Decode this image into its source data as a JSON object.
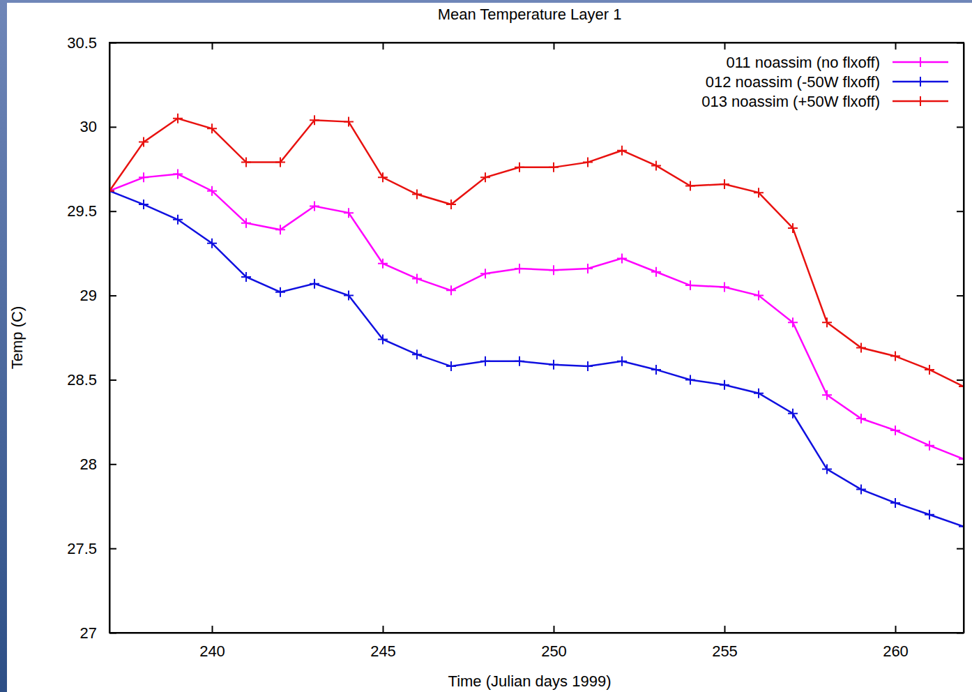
{
  "chart_data": {
    "type": "line",
    "title": "Mean Temperature Layer 1",
    "x_label": "Time (Julian days 1999)",
    "y_label": "Temp (C)",
    "x": [
      237,
      238,
      239,
      240,
      241,
      242,
      243,
      244,
      245,
      246,
      247,
      248,
      249,
      250,
      251,
      252,
      253,
      254,
      255,
      256,
      257,
      258,
      259,
      260,
      261,
      262
    ],
    "series": [
      {
        "name": "011 noassim (no flxoff)",
        "color": "#ff00ff",
        "marker": "plus",
        "line_style": "solid",
        "values": [
          29.62,
          29.7,
          29.72,
          29.62,
          29.43,
          29.39,
          29.53,
          29.49,
          29.19,
          29.1,
          29.03,
          29.13,
          29.16,
          29.15,
          29.16,
          29.22,
          29.14,
          29.06,
          29.05,
          29.0,
          28.84,
          28.41,
          28.27,
          28.2,
          28.11,
          28.03
        ]
      },
      {
        "name": "012 noassim (-50W flxoff)",
        "color": "#1010e0",
        "marker": "plus",
        "line_style": "solid",
        "values": [
          29.62,
          29.54,
          29.45,
          29.31,
          29.11,
          29.02,
          29.07,
          29.0,
          28.74,
          28.65,
          28.58,
          28.61,
          28.61,
          28.59,
          28.58,
          28.61,
          28.56,
          28.5,
          28.47,
          28.42,
          28.3,
          27.97,
          27.85,
          27.77,
          27.7,
          27.63
        ]
      },
      {
        "name": "013 noassim (+50W flxoff)",
        "color": "#e8110f",
        "marker": "plus",
        "line_style": "solid",
        "values": [
          29.62,
          29.91,
          30.05,
          29.99,
          29.79,
          29.79,
          30.04,
          30.03,
          29.7,
          29.6,
          29.54,
          29.7,
          29.76,
          29.76,
          29.79,
          29.86,
          29.77,
          29.65,
          29.66,
          29.61,
          29.4,
          28.84,
          28.69,
          28.64,
          28.56,
          28.46
        ]
      }
    ],
    "xlim": [
      237,
      262
    ],
    "xticks": [
      240,
      245,
      250,
      255,
      260
    ],
    "ylim": [
      27,
      30.5
    ],
    "yticks": [
      27,
      27.5,
      28,
      28.5,
      29,
      29.5,
      30,
      30.5
    ],
    "grid": false,
    "legend": "top-right"
  }
}
